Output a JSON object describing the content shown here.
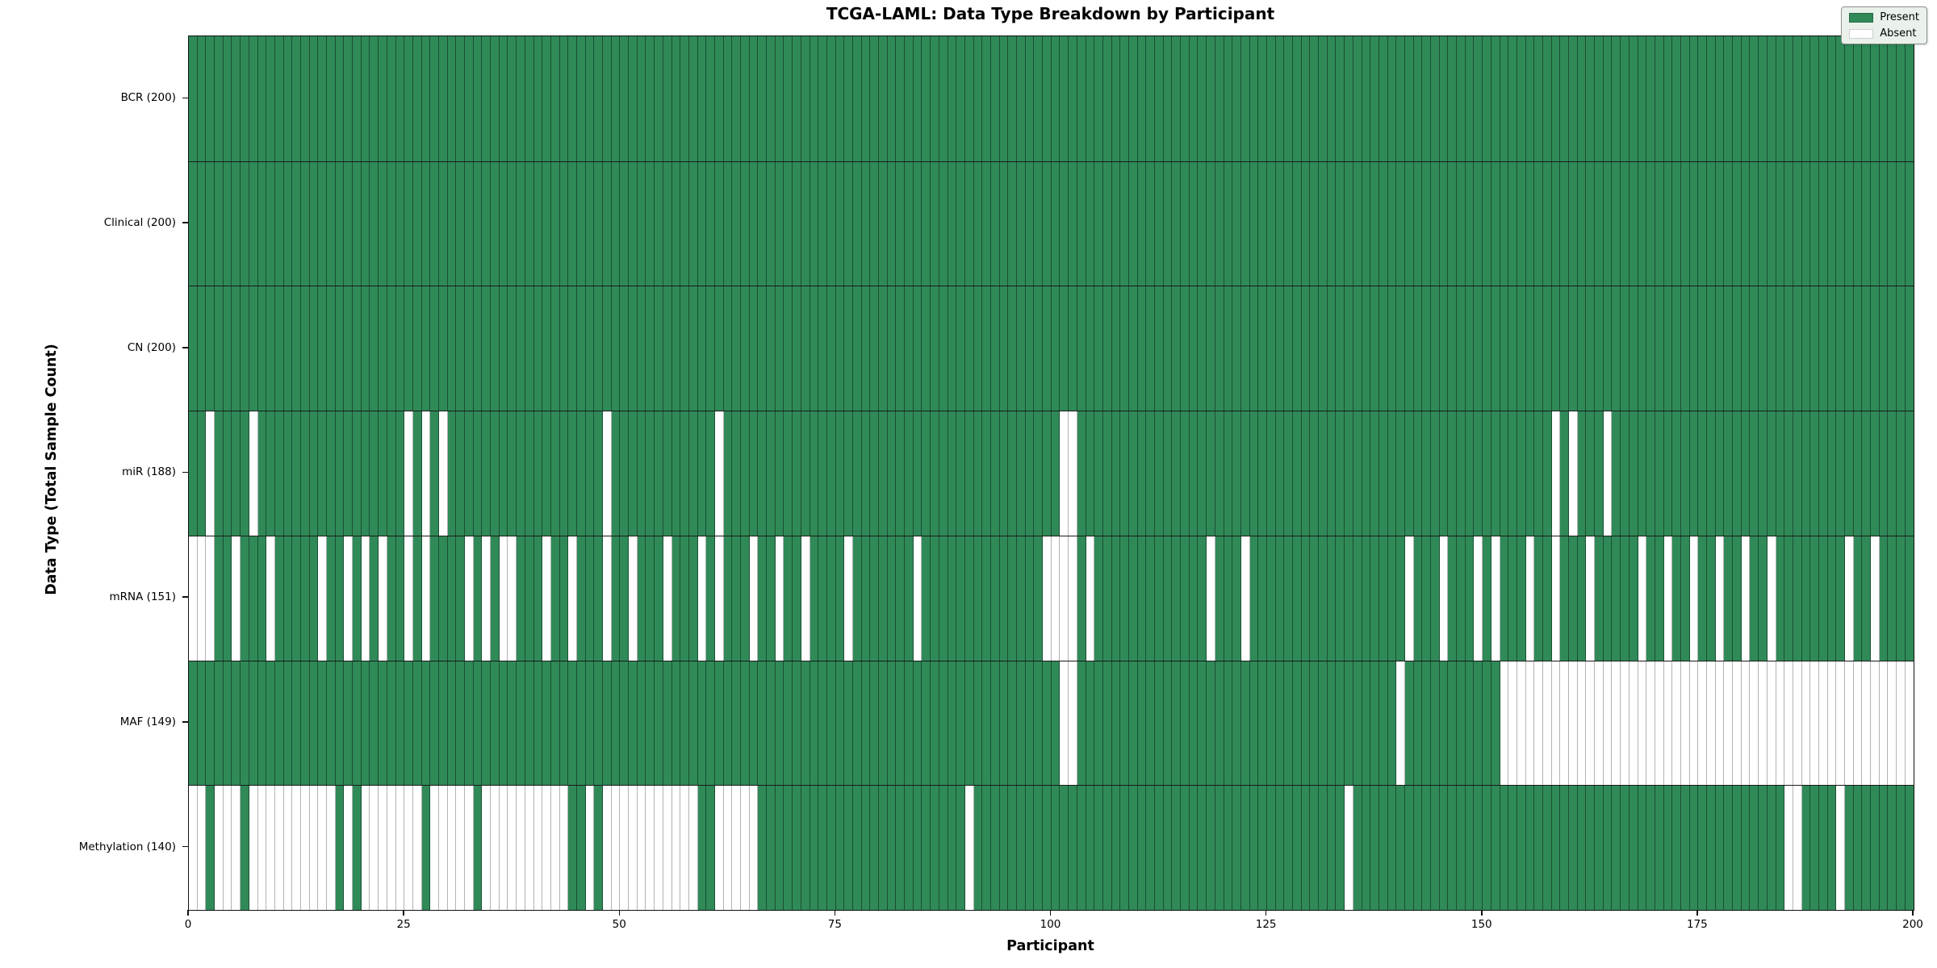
{
  "figure": {
    "title": "TCGA-LAML: Data Type Breakdown by Participant",
    "xlabel": "Participant",
    "ylabel": "Data Type (Total Sample Count)",
    "legend": {
      "present_label": "Present",
      "absent_label": "Absent"
    },
    "colors": {
      "present_fill": "#2F8A58",
      "absent_fill": "#FFFFFF",
      "present_edge": "#1c4e33",
      "absent_edge": "#b3b3b3",
      "legend_background": "#e9f1ea"
    }
  },
  "chart_data": {
    "type": "heatmap",
    "title": "TCGA-LAML: Data Type Breakdown by Participant",
    "xlabel": "Participant",
    "ylabel": "Data Type (Total Sample Count)",
    "legend_entries": [
      "Present",
      "Absent"
    ],
    "legend_position": "upper right",
    "n_participants": 200,
    "x_ticks": [
      0,
      25,
      50,
      75,
      100,
      125,
      150,
      175,
      200
    ],
    "xlim": [
      0,
      200
    ],
    "cell_values": "present=1 absent=0; rows list participant indices that are ABSENT (white); all other of the 200 participants are PRESENT (green)",
    "rows": [
      {
        "label": "BCR (200)",
        "data_type": "BCR",
        "present_count": 200,
        "absent_participants": []
      },
      {
        "label": "Clinical (200)",
        "data_type": "Clinical",
        "present_count": 200,
        "absent_participants": []
      },
      {
        "label": "CN (200)",
        "data_type": "CN",
        "present_count": 200,
        "absent_participants": []
      },
      {
        "label": "miR (188)",
        "data_type": "miR",
        "present_count": 188,
        "absent_participants": [
          2,
          7,
          25,
          27,
          29,
          48,
          61,
          101,
          102,
          158,
          160,
          164
        ]
      },
      {
        "label": "mRNA (151)",
        "data_type": "mRNA",
        "present_count": 151,
        "absent_participants": [
          0,
          1,
          2,
          5,
          9,
          15,
          18,
          20,
          22,
          25,
          27,
          32,
          34,
          36,
          37,
          41,
          44,
          48,
          51,
          55,
          59,
          61,
          65,
          68,
          71,
          76,
          84,
          99,
          100,
          101,
          102,
          104,
          118,
          122,
          141,
          145,
          149,
          151,
          155,
          158,
          162,
          168,
          171,
          174,
          177,
          180,
          183,
          192,
          195
        ]
      },
      {
        "label": "MAF (149)",
        "data_type": "MAF",
        "present_count": 149,
        "absent_participants": [
          101,
          102,
          140,
          152,
          153,
          154,
          155,
          156,
          157,
          158,
          159,
          160,
          161,
          162,
          163,
          164,
          165,
          166,
          167,
          168,
          169,
          170,
          171,
          172,
          173,
          174,
          175,
          176,
          177,
          178,
          179,
          180,
          181,
          182,
          183,
          184,
          185,
          186,
          187,
          188,
          189,
          190,
          191,
          192,
          193,
          194,
          195,
          196,
          197,
          198,
          199
        ]
      },
      {
        "label": "Methylation (140)",
        "data_type": "Methylation",
        "present_count": 140,
        "absent_participants": [
          0,
          1,
          3,
          4,
          5,
          7,
          8,
          9,
          10,
          11,
          12,
          13,
          14,
          15,
          16,
          18,
          20,
          21,
          22,
          23,
          24,
          25,
          26,
          28,
          29,
          30,
          31,
          32,
          34,
          35,
          36,
          37,
          38,
          39,
          40,
          41,
          42,
          43,
          46,
          48,
          49,
          50,
          51,
          52,
          53,
          54,
          55,
          56,
          57,
          58,
          61,
          62,
          63,
          64,
          65,
          90,
          134,
          185,
          186,
          191
        ]
      }
    ]
  }
}
